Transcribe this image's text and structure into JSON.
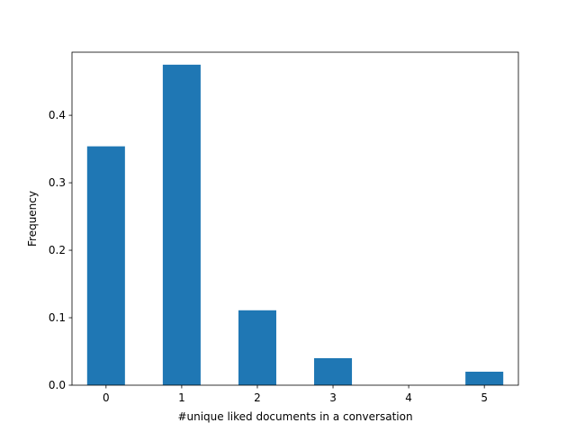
{
  "chart_data": {
    "type": "bar",
    "categories": [
      "0",
      "1",
      "2",
      "3",
      "4",
      "5"
    ],
    "values": [
      0.354,
      0.475,
      0.111,
      0.04,
      0.0,
      0.02
    ],
    "title": "",
    "xlabel": "#unique liked documents in a conversation",
    "ylabel": "Frequency",
    "ylim": [
      0,
      0.4935
    ],
    "yticks": [
      "0.0",
      "0.1",
      "0.2",
      "0.3",
      "0.4"
    ],
    "grid": false,
    "bar_color": "#1f77b4"
  }
}
